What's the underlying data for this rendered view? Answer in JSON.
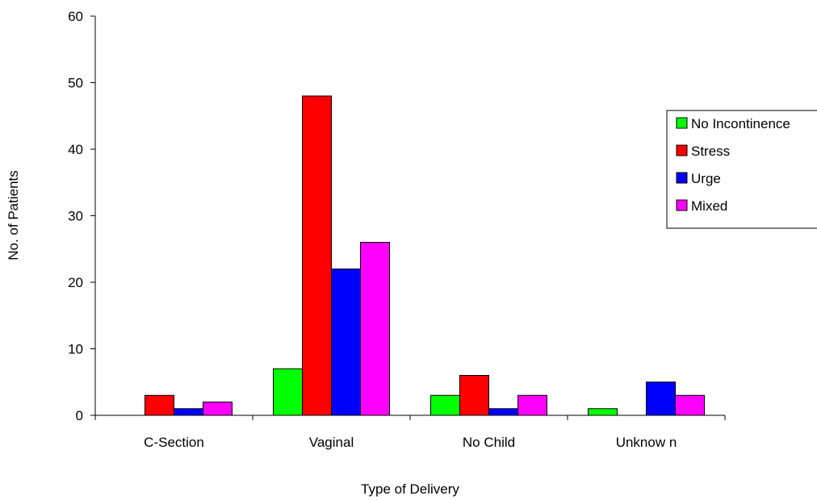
{
  "chart_data": {
    "type": "bar",
    "title": "",
    "xlabel": "Type of Delivery",
    "ylabel": "No. of Patients",
    "ylim": [
      0,
      60
    ],
    "yticks": [
      0,
      10,
      20,
      30,
      40,
      50,
      60
    ],
    "grid": false,
    "legend_position": "right",
    "categories": [
      "C-Section",
      "Vaginal",
      "No Child",
      "Unknow n"
    ],
    "series": [
      {
        "name": "No Incontinence",
        "color": "#00ff00",
        "values": [
          0,
          7,
          3,
          1
        ]
      },
      {
        "name": "Stress",
        "color": "#ff0000",
        "values": [
          3,
          48,
          6,
          0
        ]
      },
      {
        "name": "Urge",
        "color": "#0000ff",
        "values": [
          1,
          22,
          1,
          5
        ]
      },
      {
        "name": "Mixed",
        "color": "#ff00ff",
        "values": [
          2,
          26,
          3,
          3
        ]
      }
    ]
  }
}
